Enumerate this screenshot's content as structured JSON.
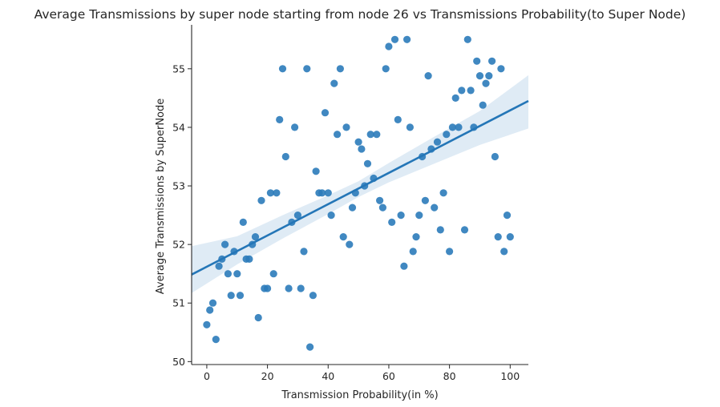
{
  "chart_data": {
    "type": "scatter",
    "title": "Average Transmissions by super node starting from node 26 vs Transmissions Probability(to Super Node)",
    "xlabel": "Transmission Probability(in %)",
    "ylabel": "Average Transmissions by SuperNode",
    "xlim": [
      -5,
      106
    ],
    "ylim": [
      49.95,
      55.75
    ],
    "xticks": [
      0,
      20,
      40,
      60,
      80,
      100
    ],
    "yticks": [
      50,
      51,
      52,
      53,
      54,
      55
    ],
    "x": [
      0,
      1,
      2,
      3,
      4,
      5,
      6,
      7,
      8,
      9,
      10,
      11,
      12,
      13,
      14,
      15,
      16,
      17,
      18,
      19,
      20,
      21,
      22,
      23,
      24,
      25,
      26,
      27,
      28,
      29,
      30,
      31,
      32,
      33,
      34,
      35,
      36,
      37,
      38,
      39,
      40,
      41,
      42,
      43,
      44,
      45,
      46,
      47,
      48,
      49,
      50,
      51,
      52,
      53,
      54,
      55,
      56,
      57,
      58,
      59,
      60,
      61,
      62,
      63,
      64,
      65,
      66,
      67,
      68,
      69,
      70,
      71,
      72,
      73,
      74,
      75,
      76,
      77,
      78,
      79,
      80,
      81,
      82,
      83,
      84,
      85,
      86,
      87,
      88,
      89,
      90,
      91,
      92,
      93,
      94,
      95,
      96,
      97,
      98,
      99,
      100
    ],
    "y": [
      50.63,
      50.88,
      51.0,
      50.38,
      51.63,
      51.75,
      52.0,
      51.5,
      51.13,
      51.88,
      51.5,
      51.13,
      52.38,
      51.75,
      51.75,
      52.0,
      52.13,
      50.75,
      52.75,
      51.25,
      51.25,
      52.88,
      51.5,
      52.88,
      54.13,
      55.0,
      53.5,
      51.25,
      52.38,
      54.0,
      52.5,
      51.25,
      51.88,
      55.0,
      50.25,
      51.13,
      53.25,
      52.88,
      52.88,
      54.25,
      52.88,
      52.5,
      54.75,
      53.88,
      55.0,
      52.13,
      54.0,
      52.0,
      52.63,
      52.88,
      53.75,
      53.63,
      53.0,
      53.38,
      53.88,
      53.13,
      53.88,
      52.75,
      52.63,
      55.0,
      55.38,
      52.38,
      55.5,
      54.13,
      52.5,
      51.63,
      55.5,
      54.0,
      51.88,
      52.13,
      52.5,
      53.5,
      52.75,
      54.88,
      53.63,
      52.63,
      53.75,
      52.25,
      52.88,
      53.88,
      51.88,
      54.0,
      54.5,
      54.0,
      54.63,
      52.25,
      55.5,
      54.63,
      54.0,
      55.13,
      54.88,
      54.38,
      54.75,
      54.88,
      55.13,
      53.5,
      52.13,
      55.0,
      51.88,
      52.5,
      52.13
    ],
    "regression": {
      "intercept": 51.62,
      "slope": 0.0267,
      "ci": [
        {
          "x": -5,
          "lower": 51.17,
          "upper": 51.97
        },
        {
          "x": 10,
          "lower": 51.66,
          "upper": 52.14
        },
        {
          "x": 25,
          "lower": 52.1,
          "upper": 52.5
        },
        {
          "x": 40,
          "lower": 52.52,
          "upper": 52.84
        },
        {
          "x": 50,
          "lower": 52.81,
          "upper": 53.08
        },
        {
          "x": 60,
          "lower": 53.06,
          "upper": 53.39
        },
        {
          "x": 75,
          "lower": 53.38,
          "upper": 53.84
        },
        {
          "x": 90,
          "lower": 53.7,
          "upper": 54.28
        },
        {
          "x": 106,
          "lower": 53.98,
          "upper": 54.89
        }
      ]
    },
    "grid": false,
    "legend": "none",
    "colors": {
      "points": "#2b7bba",
      "line": "#2476b7",
      "band": "#2b7bba",
      "text": "#262626"
    }
  }
}
